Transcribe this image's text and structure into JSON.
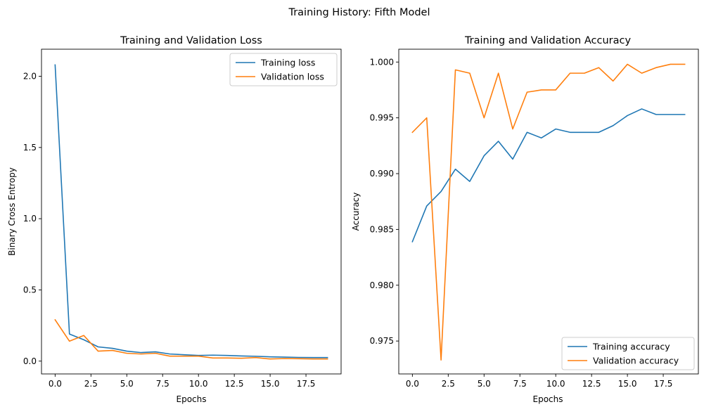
{
  "figure": {
    "suptitle": "Training History: Fifth Model"
  },
  "chart_data": [
    {
      "type": "line",
      "title": "Training and Validation Loss",
      "xlabel": "Epochs",
      "ylabel": "Binary Cross Entropy",
      "xlim": [
        -0.95,
        19.95
      ],
      "ylim": [
        -0.09,
        2.19
      ],
      "xticks": [
        0.0,
        2.5,
        5.0,
        7.5,
        10.0,
        12.5,
        15.0,
        17.5
      ],
      "xtick_labels": [
        "0.0",
        "2.5",
        "5.0",
        "7.5",
        "10.0",
        "12.5",
        "15.0",
        "17.5"
      ],
      "yticks": [
        0.0,
        0.5,
        1.0,
        1.5,
        2.0
      ],
      "ytick_labels": [
        "0.0",
        "0.5",
        "1.0",
        "1.5",
        "2.0"
      ],
      "legend_position": "top-right",
      "x": [
        0,
        1,
        2,
        3,
        4,
        5,
        6,
        7,
        8,
        9,
        10,
        11,
        12,
        13,
        14,
        15,
        16,
        17,
        18,
        19
      ],
      "series": [
        {
          "name": "Training loss",
          "color": "#1f77b4",
          "values": [
            2.08,
            0.19,
            0.15,
            0.1,
            0.09,
            0.07,
            0.06,
            0.065,
            0.05,
            0.045,
            0.04,
            0.042,
            0.04,
            0.036,
            0.034,
            0.03,
            0.028,
            0.026,
            0.025,
            0.025
          ]
        },
        {
          "name": "Validation loss",
          "color": "#ff7f0e",
          "values": [
            0.29,
            0.14,
            0.18,
            0.07,
            0.075,
            0.055,
            0.05,
            0.055,
            0.035,
            0.035,
            0.035,
            0.022,
            0.022,
            0.02,
            0.025,
            0.015,
            0.018,
            0.017,
            0.015,
            0.015
          ]
        }
      ]
    },
    {
      "type": "line",
      "title": "Training and Validation Accuracy",
      "xlabel": "Epochs",
      "ylabel": "Accuracy",
      "xlim": [
        -0.95,
        19.95
      ],
      "ylim": [
        0.97205,
        1.00115
      ],
      "xticks": [
        0.0,
        2.5,
        5.0,
        7.5,
        10.0,
        12.5,
        15.0,
        17.5
      ],
      "xtick_labels": [
        "0.0",
        "2.5",
        "5.0",
        "7.5",
        "10.0",
        "12.5",
        "15.0",
        "17.5"
      ],
      "yticks": [
        0.975,
        0.98,
        0.985,
        0.99,
        0.995,
        1.0
      ],
      "ytick_labels": [
        "0.975",
        "0.980",
        "0.985",
        "0.990",
        "0.995",
        "1.000"
      ],
      "legend_position": "lower-right",
      "x": [
        0,
        1,
        2,
        3,
        4,
        5,
        6,
        7,
        8,
        9,
        10,
        11,
        12,
        13,
        14,
        15,
        16,
        17,
        18,
        19
      ],
      "series": [
        {
          "name": "Training accuracy",
          "color": "#1f77b4",
          "values": [
            0.9839,
            0.9871,
            0.9884,
            0.9904,
            0.9893,
            0.9916,
            0.9929,
            0.9913,
            0.9937,
            0.9932,
            0.994,
            0.9937,
            0.9937,
            0.9937,
            0.9943,
            0.9952,
            0.9958,
            0.9953,
            0.9953,
            0.9953
          ]
        },
        {
          "name": "Validation accuracy",
          "color": "#ff7f0e",
          "values": [
            0.9937,
            0.995,
            0.9733,
            0.9993,
            0.999,
            0.995,
            0.999,
            0.994,
            0.9973,
            0.9975,
            0.9975,
            0.999,
            0.999,
            0.9995,
            0.9983,
            0.9998,
            0.999,
            0.9995,
            0.9998,
            0.9998
          ]
        }
      ]
    }
  ]
}
